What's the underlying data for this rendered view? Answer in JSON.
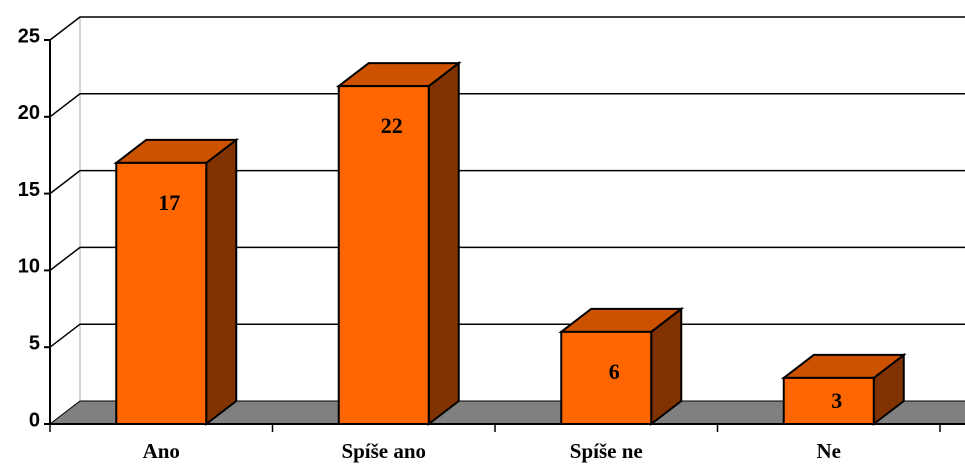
{
  "chart_data": {
    "type": "bar3d",
    "categories": [
      "Ano",
      "Spíše ano",
      "Spíše ne",
      "Ne"
    ],
    "values": [
      17,
      22,
      6,
      3
    ],
    "color": "#ff6600",
    "ylim": [
      0,
      25
    ],
    "yticks": [
      0,
      5,
      10,
      15,
      20,
      25
    ],
    "grid": true
  }
}
